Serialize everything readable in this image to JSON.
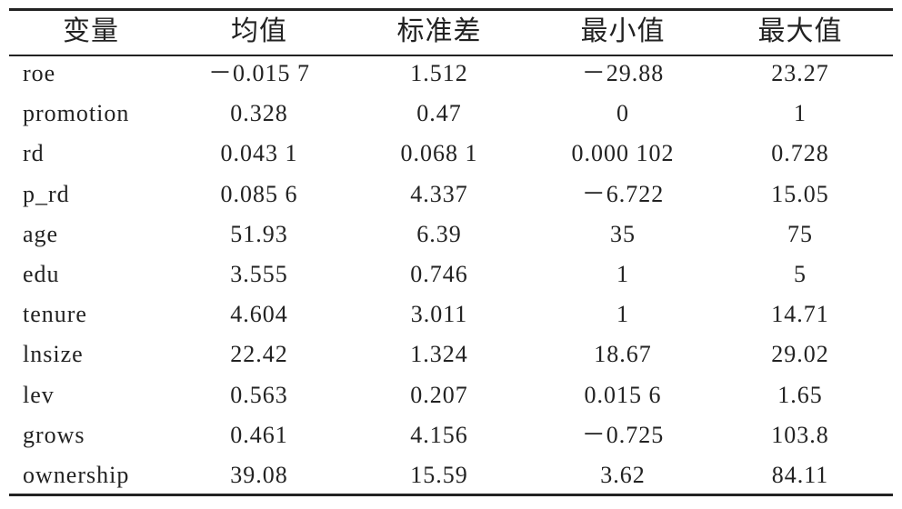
{
  "table": {
    "header": [
      "变量",
      "均值",
      "标准差",
      "最小值",
      "最大值"
    ],
    "rows": [
      [
        "roe",
        "－0.015 7",
        "1.512",
        "－29.88",
        "23.27"
      ],
      [
        "promotion",
        "0.328",
        "0.47",
        "0",
        "1"
      ],
      [
        "rd",
        "0.043 1",
        "0.068 1",
        "0.000 102",
        "0.728"
      ],
      [
        "p_rd",
        "0.085 6",
        "4.337",
        "－6.722",
        "15.05"
      ],
      [
        "age",
        "51.93",
        "6.39",
        "35",
        "75"
      ],
      [
        "edu",
        "3.555",
        "0.746",
        "1",
        "5"
      ],
      [
        "tenure",
        "4.604",
        "3.011",
        "1",
        "14.71"
      ],
      [
        "lnsize",
        "22.42",
        "1.324",
        "18.67",
        "29.02"
      ],
      [
        "lev",
        "0.563",
        "0.207",
        "0.015 6",
        "1.65"
      ],
      [
        "grows",
        "0.461",
        "4.156",
        "－0.725",
        "103.8"
      ],
      [
        "ownership",
        "39.08",
        "15.59",
        "3.62",
        "84.11"
      ]
    ]
  }
}
